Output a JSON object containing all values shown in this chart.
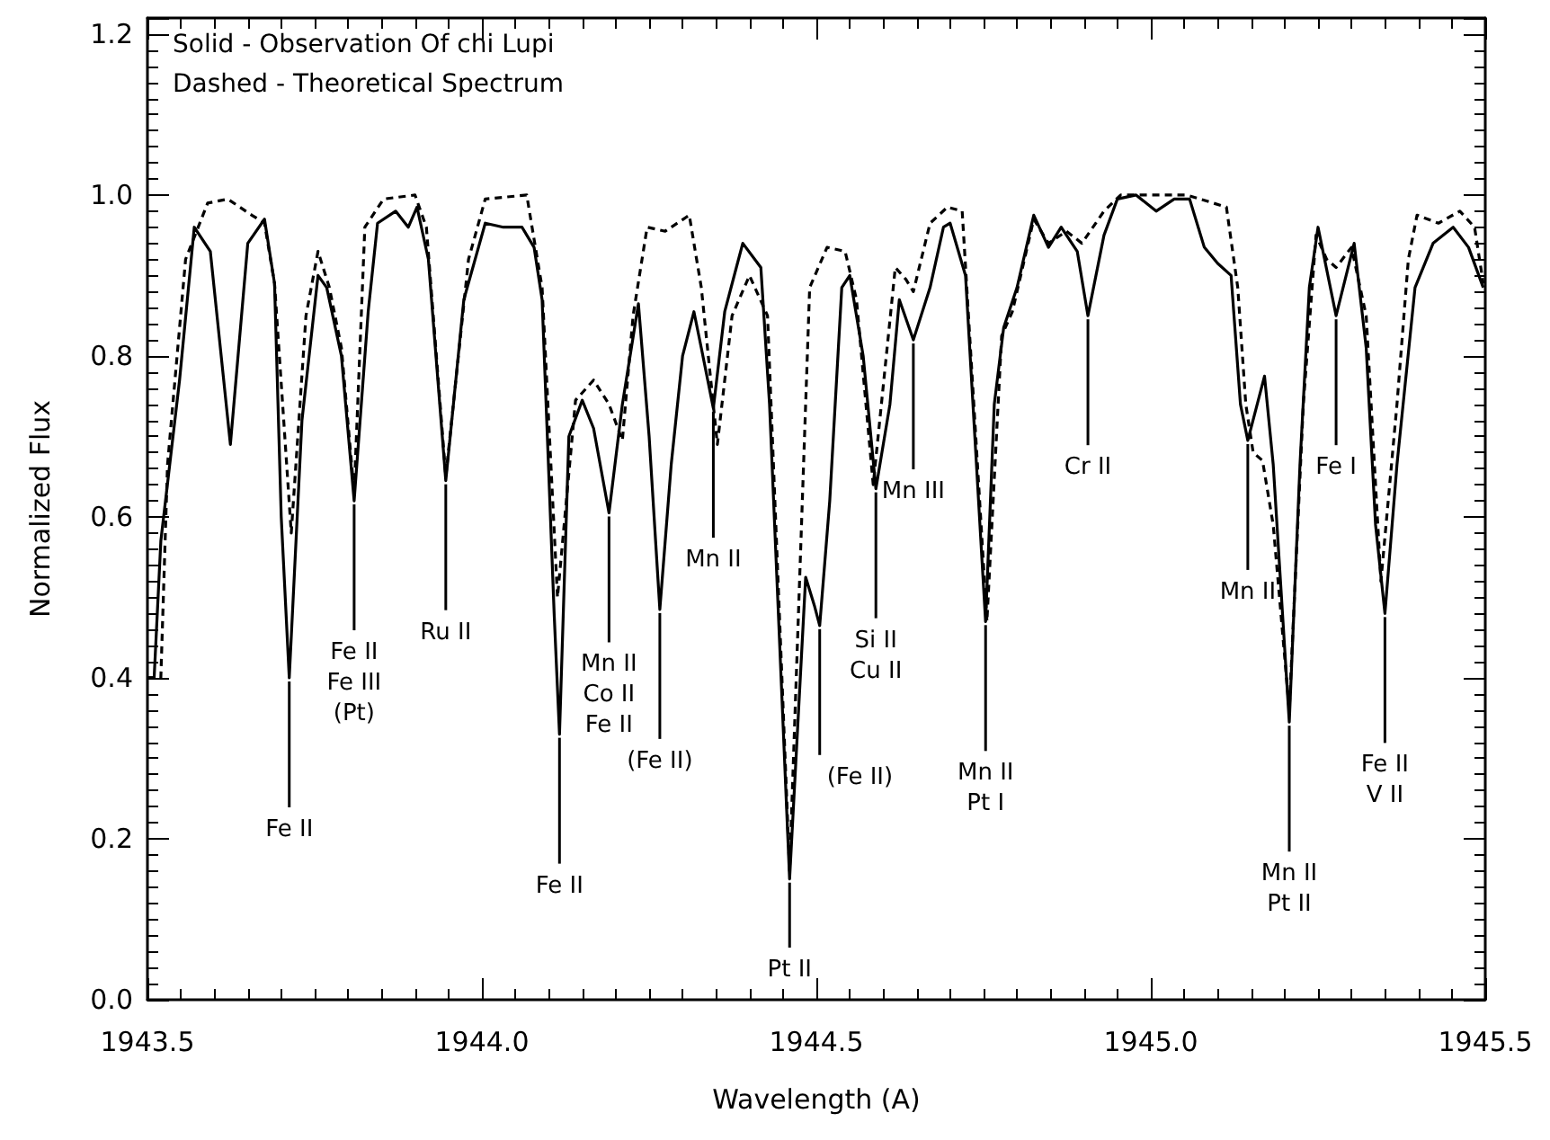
{
  "chart_data": {
    "type": "line",
    "xlabel": "Wavelength (A)",
    "ylabel": "Normalized Flux",
    "xlim": [
      1943.5,
      1945.5
    ],
    "ylim": [
      0,
      1.22
    ],
    "xticks": [
      1943.5,
      {
        "value": 1944,
        "label": "1944.0"
      },
      1944.5,
      {
        "value": 1945,
        "label": "1945.0"
      },
      1945.5
    ],
    "yticks": [
      {
        "value": 0,
        "label": "0.0"
      },
      0.2,
      0.4,
      0.6,
      0.8,
      {
        "value": 1,
        "label": "1.0"
      },
      1.2
    ],
    "grid": false,
    "marker": "none",
    "series": [
      {
        "color": "#000000",
        "line_style": "solid",
        "x": [
          1943.5,
          1943.51,
          1943.52,
          1943.548,
          1943.57,
          1943.594,
          1943.624,
          1943.65,
          1943.675,
          1943.69,
          1943.7,
          1943.712,
          1943.731,
          1943.755,
          1943.768,
          1943.79,
          1943.809,
          1943.83,
          1943.844,
          1943.871,
          1943.89,
          1943.903,
          1943.92,
          1943.946,
          1943.973,
          1944.005,
          1944.032,
          1944.06,
          1944.078,
          1944.09,
          1944.108,
          1944.116,
          1944.13,
          1944.15,
          1944.167,
          1944.19,
          1944.21,
          1944.234,
          1944.25,
          1944.266,
          1944.283,
          1944.3,
          1944.317,
          1944.328,
          1944.346,
          1944.363,
          1944.382,
          1944.39,
          1944.417,
          1944.43,
          1944.46,
          1944.484,
          1944.497,
          1944.505,
          1944.52,
          1944.538,
          1944.55,
          1944.57,
          1944.589,
          1944.61,
          1944.624,
          1944.645,
          1944.67,
          1944.69,
          1944.7,
          1944.723,
          1944.747,
          1944.753,
          1944.766,
          1944.78,
          1944.8,
          1944.825,
          1944.847,
          1944.866,
          1944.89,
          1944.906,
          1944.93,
          1944.95,
          1944.978,
          1945.008,
          1945.035,
          1945.058,
          1945.08,
          1945.1,
          1945.12,
          1945.134,
          1945.145,
          1945.17,
          1945.183,
          1945.207,
          1945.223,
          1945.237,
          1945.25,
          1945.277,
          1945.304,
          1945.322,
          1945.336,
          1945.35,
          1945.368,
          1945.395,
          1945.422,
          1945.452,
          1945.475,
          1945.497
        ],
        "values": [
          0.4,
          0.4,
          0.57,
          0.77,
          0.96,
          0.93,
          0.69,
          0.94,
          0.97,
          0.89,
          0.6,
          0.4,
          0.72,
          0.9,
          0.885,
          0.8,
          0.62,
          0.855,
          0.965,
          0.98,
          0.96,
          0.985,
          0.92,
          0.645,
          0.87,
          0.965,
          0.96,
          0.96,
          0.935,
          0.87,
          0.48,
          0.33,
          0.7,
          0.745,
          0.71,
          0.605,
          0.74,
          0.865,
          0.7,
          0.485,
          0.665,
          0.8,
          0.855,
          0.81,
          0.735,
          0.855,
          0.915,
          0.94,
          0.91,
          0.74,
          0.15,
          0.525,
          0.49,
          0.465,
          0.62,
          0.885,
          0.9,
          0.8,
          0.635,
          0.74,
          0.87,
          0.82,
          0.885,
          0.96,
          0.965,
          0.9,
          0.555,
          0.47,
          0.74,
          0.835,
          0.885,
          0.975,
          0.935,
          0.96,
          0.93,
          0.85,
          0.95,
          0.995,
          1.0,
          0.98,
          0.995,
          0.995,
          0.935,
          0.915,
          0.9,
          0.74,
          0.695,
          0.775,
          0.665,
          0.345,
          0.665,
          0.885,
          0.96,
          0.85,
          0.94,
          0.81,
          0.59,
          0.48,
          0.665,
          0.885,
          0.94,
          0.96,
          0.935,
          0.885
        ]
      },
      {
        "color": "#000000",
        "line_style": "dashed",
        "x": [
          1943.5,
          1943.52,
          1943.53,
          1943.557,
          1943.59,
          1943.62,
          1943.656,
          1943.675,
          1943.69,
          1943.715,
          1943.737,
          1943.755,
          1943.772,
          1943.79,
          1943.809,
          1943.825,
          1943.853,
          1943.9,
          1943.917,
          1943.946,
          1943.98,
          1944.005,
          1944.067,
          1944.09,
          1944.113,
          1944.14,
          1944.167,
          1944.19,
          1944.21,
          1944.226,
          1944.247,
          1944.274,
          1944.31,
          1944.328,
          1944.352,
          1944.374,
          1944.4,
          1944.427,
          1944.46,
          1944.49,
          1944.516,
          1944.543,
          1944.56,
          1944.585,
          1944.618,
          1944.634,
          1944.645,
          1944.67,
          1944.696,
          1944.718,
          1944.755,
          1944.777,
          1944.793,
          1944.825,
          1944.847,
          1944.874,
          1944.897,
          1944.93,
          1944.955,
          1945.054,
          1945.113,
          1945.13,
          1945.142,
          1945.153,
          1945.167,
          1945.183,
          1945.207,
          1945.228,
          1945.247,
          1945.263,
          1945.277,
          1945.3,
          1945.322,
          1945.344,
          1945.368,
          1945.385,
          1945.398,
          1945.43,
          1945.462,
          1945.484,
          1945.497
        ],
        "values": [
          0.4,
          0.4,
          0.665,
          0.92,
          0.99,
          0.995,
          0.975,
          0.965,
          0.89,
          0.58,
          0.85,
          0.93,
          0.885,
          0.81,
          0.63,
          0.96,
          0.995,
          1.0,
          0.96,
          0.65,
          0.92,
          0.995,
          1.0,
          0.885,
          0.5,
          0.745,
          0.77,
          0.74,
          0.695,
          0.85,
          0.96,
          0.955,
          0.975,
          0.885,
          0.69,
          0.85,
          0.9,
          0.85,
          0.16,
          0.885,
          0.935,
          0.93,
          0.87,
          0.64,
          0.91,
          0.895,
          0.88,
          0.965,
          0.985,
          0.98,
          0.47,
          0.825,
          0.855,
          0.97,
          0.94,
          0.955,
          0.94,
          0.98,
          1.0,
          1.0,
          0.985,
          0.885,
          0.74,
          0.68,
          0.67,
          0.59,
          0.36,
          0.74,
          0.95,
          0.92,
          0.91,
          0.935,
          0.85,
          0.52,
          0.74,
          0.92,
          0.975,
          0.965,
          0.98,
          0.96,
          0.89
        ]
      }
    ],
    "annotations": [
      "Solid - Observation Of chi Lupi",
      "Dashed - Theoretical Spectrum",
      {
        "text": "Fe II",
        "x": 1943.712,
        "y": 0.4
      },
      {
        "text": "Fe II\nFe III\n(Pt)",
        "x": 1943.809,
        "y": 0.62
      },
      {
        "text": "Ru II",
        "x": 1943.946,
        "y": 0.645
      },
      {
        "text": "Fe II",
        "x": 1944.116,
        "y": 0.33
      },
      {
        "text": "Mn II\nCo II\nFe II",
        "x": 1944.19,
        "y": 0.605
      },
      {
        "text": "(Fe II)",
        "x": 1944.266,
        "y": 0.485
      },
      {
        "text": "Mn II",
        "x": 1944.346,
        "y": 0.735
      },
      {
        "text": "Pt II",
        "x": 1944.46,
        "y": 0.15
      },
      {
        "text": "(Fe II)",
        "x": 1944.505,
        "y": 0.465
      },
      {
        "text": "Si II\nCu II",
        "x": 1944.589,
        "y": 0.635
      },
      {
        "text": "Mn III",
        "x": 1944.645,
        "y": 0.82
      },
      {
        "text": "Mn II\nPt I",
        "x": 1944.753,
        "y": 0.47
      },
      {
        "text": "Cr II",
        "x": 1944.906,
        "y": 0.85
      },
      {
        "text": "Mn II",
        "x": 1945.145,
        "y": 0.695
      },
      {
        "text": "Mn II\nPt II",
        "x": 1945.207,
        "y": 0.345
      },
      {
        "text": "Fe I",
        "x": 1945.277,
        "y": 0.85
      },
      {
        "text": "Fe II\nV II",
        "x": 1945.35,
        "y": 0.48
      }
    ]
  }
}
